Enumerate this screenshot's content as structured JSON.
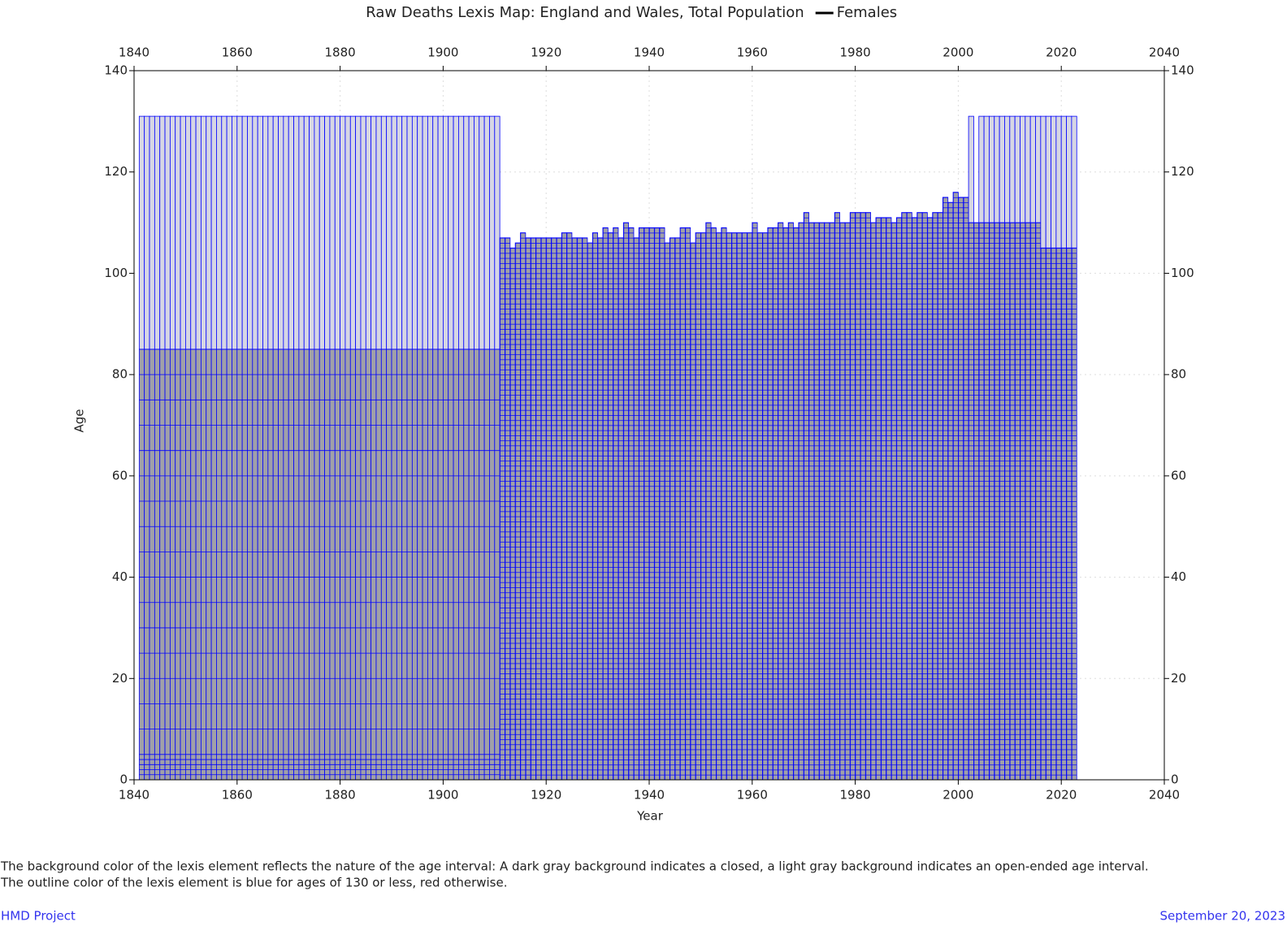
{
  "chart_data": {
    "type": "lexis",
    "title": "Raw Deaths Lexis Map: England and Wales, Total Population",
    "legend": "Females",
    "legend_color": "#000000",
    "x_label": "Year",
    "y_label": "Age",
    "xlim": [
      1840,
      2040
    ],
    "ylim": [
      0,
      140
    ],
    "xticks": [
      1840,
      1860,
      1880,
      1900,
      1920,
      1940,
      1960,
      1980,
      2000,
      2020,
      2040
    ],
    "yticks": [
      0,
      20,
      40,
      60,
      80,
      100,
      120,
      140
    ],
    "grid": true,
    "closed_color": "#a0a0a8",
    "open_color": "#d6d6e4",
    "outline_color": "#0000ff",
    "early": {
      "years": [
        1841,
        1910
      ],
      "age_breaks": [
        0,
        1,
        2,
        3,
        4,
        5,
        10,
        15,
        20,
        25,
        30,
        35,
        40,
        45,
        50,
        55,
        60,
        65,
        70,
        75,
        80,
        85
      ],
      "open_top": 131
    },
    "x": [
      1911,
      1912,
      1913,
      1914,
      1915,
      1916,
      1917,
      1918,
      1919,
      1920,
      1921,
      1922,
      1923,
      1924,
      1925,
      1926,
      1927,
      1928,
      1929,
      1930,
      1931,
      1932,
      1933,
      1934,
      1935,
      1936,
      1937,
      1938,
      1939,
      1940,
      1941,
      1942,
      1943,
      1944,
      1945,
      1946,
      1947,
      1948,
      1949,
      1950,
      1951,
      1952,
      1953,
      1954,
      1955,
      1956,
      1957,
      1958,
      1959,
      1960,
      1961,
      1962,
      1963,
      1964,
      1965,
      1966,
      1967,
      1968,
      1969,
      1970,
      1971,
      1972,
      1973,
      1974,
      1975,
      1976,
      1977,
      1978,
      1979,
      1980,
      1981,
      1982,
      1983,
      1984,
      1985,
      1986,
      1987,
      1988,
      1989,
      1990,
      1991,
      1992,
      1993,
      1994,
      1995,
      1996,
      1997,
      1998,
      1999,
      2000,
      2001,
      2002,
      2003,
      2004,
      2005,
      2006,
      2007,
      2008,
      2009,
      2010,
      2011,
      2012,
      2013,
      2014,
      2015,
      2016,
      2017,
      2018,
      2019,
      2020,
      2021,
      2022
    ],
    "top_closed": [
      107,
      107,
      105,
      106,
      108,
      107,
      107,
      107,
      107,
      107,
      107,
      107,
      108,
      108,
      107,
      107,
      107,
      106,
      108,
      107,
      109,
      108,
      109,
      107,
      110,
      109,
      107,
      109,
      109,
      109,
      109,
      109,
      106,
      107,
      107,
      109,
      109,
      106,
      108,
      108,
      110,
      109,
      108,
      109,
      108,
      108,
      108,
      108,
      108,
      110,
      108,
      108,
      109,
      109,
      110,
      109,
      110,
      109,
      110,
      112,
      110,
      110,
      110,
      110,
      110,
      112,
      110,
      110,
      112,
      112,
      112,
      112,
      110,
      111,
      111,
      111,
      110,
      111,
      112,
      112,
      111,
      112,
      112,
      111,
      112,
      112,
      115,
      114,
      116,
      115,
      115,
      110,
      110,
      110,
      110,
      110,
      110,
      110,
      110,
      110,
      110,
      110,
      110,
      110,
      110,
      105,
      105,
      105,
      105,
      105,
      105,
      105
    ],
    "open_top": [
      null,
      null,
      null,
      null,
      null,
      null,
      null,
      null,
      null,
      null,
      null,
      null,
      null,
      null,
      null,
      null,
      null,
      null,
      null,
      null,
      null,
      null,
      null,
      null,
      null,
      null,
      null,
      null,
      null,
      null,
      null,
      null,
      null,
      null,
      null,
      null,
      null,
      null,
      null,
      null,
      null,
      null,
      null,
      null,
      null,
      null,
      null,
      null,
      null,
      null,
      null,
      null,
      null,
      null,
      null,
      null,
      null,
      null,
      null,
      null,
      null,
      null,
      null,
      null,
      null,
      null,
      null,
      null,
      null,
      null,
      null,
      null,
      null,
      null,
      null,
      null,
      null,
      null,
      null,
      null,
      null,
      null,
      null,
      null,
      null,
      null,
      null,
      null,
      null,
      null,
      null,
      131,
      null,
      131,
      131,
      131,
      131,
      131,
      131,
      131,
      131,
      131,
      131,
      131,
      131,
      131,
      131,
      131,
      131,
      131,
      131,
      131
    ],
    "notes": [
      "The background color of the lexis element reflects the nature of the age interval: A dark gray background indicates a closed, a light gray background indicates an open-ended age interval.",
      "The outline color of the lexis element is blue for ages of 130 or less, red otherwise."
    ],
    "footer_left": "HMD Project",
    "footer_right": "September 20, 2023"
  }
}
